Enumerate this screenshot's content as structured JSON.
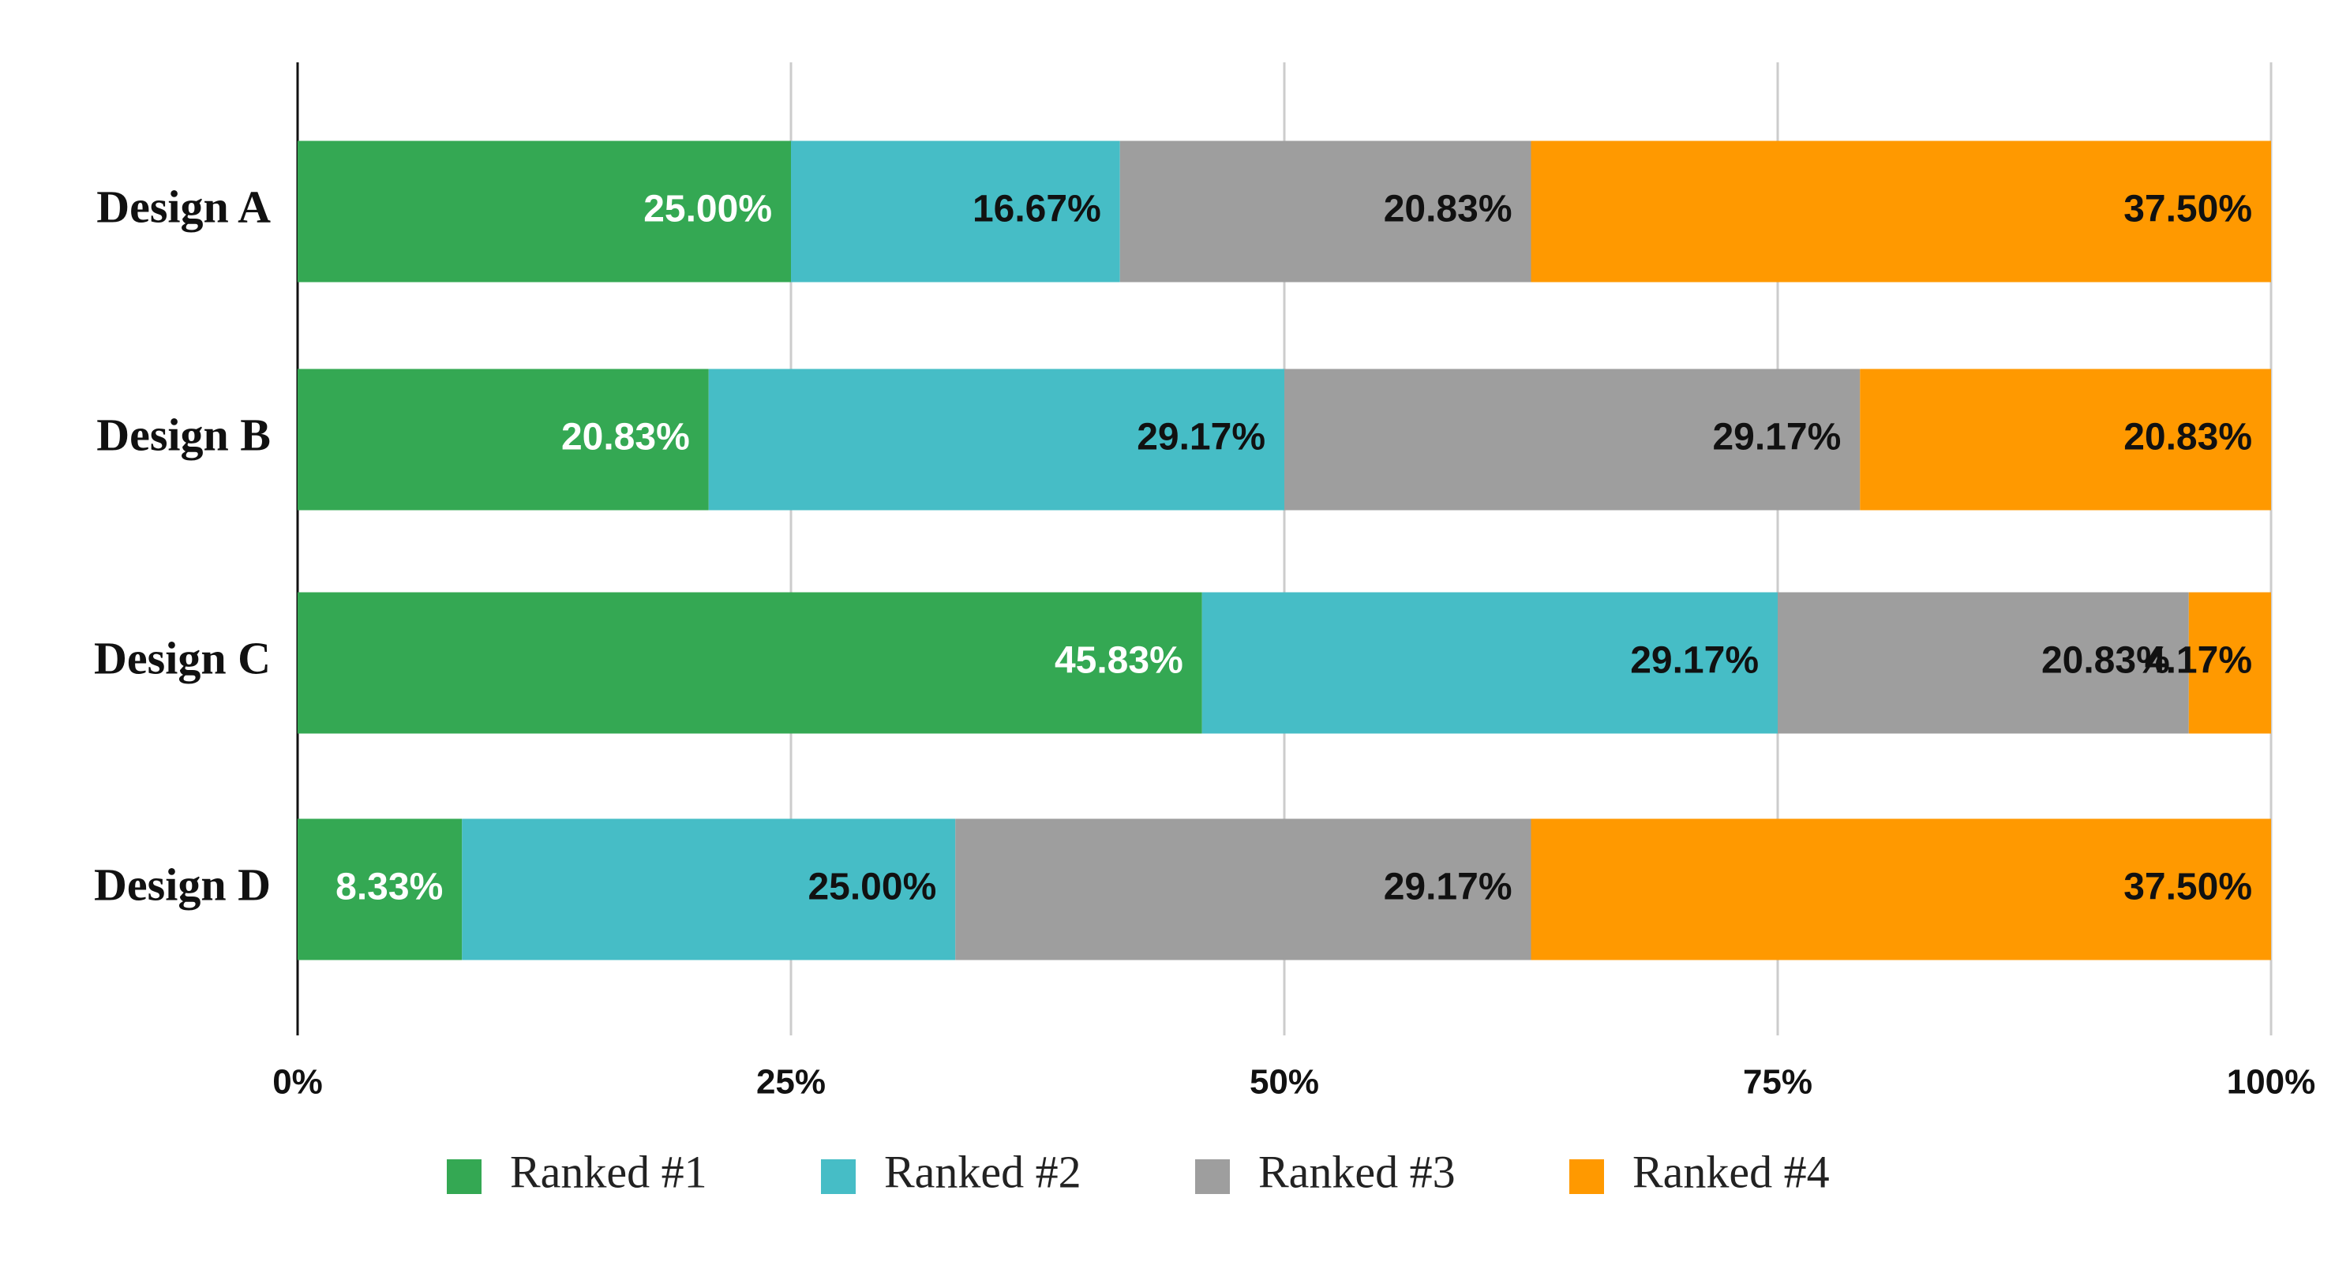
{
  "chart_data": {
    "type": "stacked_bar_horizontal",
    "categories": [
      "Design A",
      "Design B",
      "Design C",
      "Design D"
    ],
    "series": [
      {
        "name": "Ranked #1",
        "color": "#34a853",
        "label_color": "#ffffff",
        "values": [
          25.0,
          20.83,
          45.83,
          8.33
        ],
        "value_labels": [
          "25.00%",
          "20.83%",
          "45.83%",
          "8.33%"
        ]
      },
      {
        "name": "Ranked #2",
        "color": "#46bdc6",
        "label_color": "#111111",
        "values": [
          16.67,
          29.17,
          29.17,
          25.0
        ],
        "value_labels": [
          "16.67%",
          "29.17%",
          "29.17%",
          "25.00%"
        ]
      },
      {
        "name": "Ranked #3",
        "color": "#9e9e9e",
        "label_color": "#111111",
        "values": [
          20.83,
          29.17,
          20.83,
          29.17
        ],
        "value_labels": [
          "20.83%",
          "29.17%",
          "20.83%",
          "29.17%"
        ]
      },
      {
        "name": "Ranked #4",
        "color": "#ff9900",
        "label_color": "#111111",
        "values": [
          37.5,
          20.83,
          4.17,
          37.5
        ],
        "value_labels": [
          "37.50%",
          "20.83%",
          "4.17%",
          "37.50%"
        ]
      }
    ],
    "xlim": [
      0,
      100
    ],
    "xticks": [
      {
        "value": 0,
        "label": "0%"
      },
      {
        "value": 25,
        "label": "25%"
      },
      {
        "value": 50,
        "label": "50%"
      },
      {
        "value": 75,
        "label": "75%"
      },
      {
        "value": 100,
        "label": "100%"
      }
    ],
    "grid": true,
    "legend": "bottom"
  }
}
